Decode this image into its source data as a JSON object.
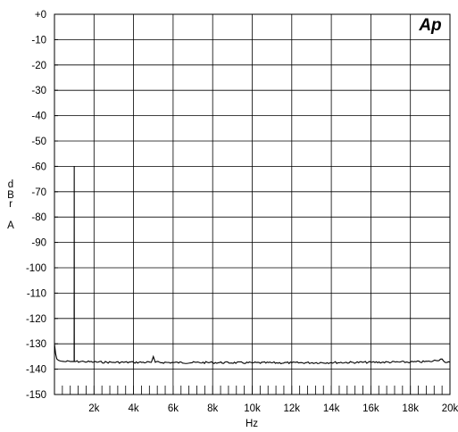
{
  "logo": {
    "text": "Ap"
  },
  "chart_data": {
    "type": "line",
    "title": "",
    "xlabel": "Hz",
    "ylabel_chars": [
      "d",
      "B",
      "r",
      "",
      "A"
    ],
    "xlim": [
      0,
      20000
    ],
    "ylim": [
      -150,
      0
    ],
    "grid": true,
    "x_ticks": [
      {
        "value": 2000,
        "label": "2k"
      },
      {
        "value": 4000,
        "label": "4k"
      },
      {
        "value": 6000,
        "label": "6k"
      },
      {
        "value": 8000,
        "label": "8k"
      },
      {
        "value": 10000,
        "label": "10k"
      },
      {
        "value": 12000,
        "label": "12k"
      },
      {
        "value": 14000,
        "label": "14k"
      },
      {
        "value": 16000,
        "label": "16k"
      },
      {
        "value": 18000,
        "label": "18k"
      },
      {
        "value": 20000,
        "label": "20k"
      }
    ],
    "y_ticks": [
      {
        "value": 0,
        "label": "+0"
      },
      {
        "value": -10,
        "label": "-10"
      },
      {
        "value": -20,
        "label": "-20"
      },
      {
        "value": -30,
        "label": "-30"
      },
      {
        "value": -40,
        "label": "-40"
      },
      {
        "value": -50,
        "label": "-50"
      },
      {
        "value": -60,
        "label": "-60"
      },
      {
        "value": -70,
        "label": "-70"
      },
      {
        "value": -80,
        "label": "-80"
      },
      {
        "value": -90,
        "label": "-90"
      },
      {
        "value": -100,
        "label": "-100"
      },
      {
        "value": -110,
        "label": "-110"
      },
      {
        "value": -120,
        "label": "-120"
      },
      {
        "value": -130,
        "label": "-130"
      },
      {
        "value": -140,
        "label": "-140"
      },
      {
        "value": -150,
        "label": "-150"
      }
    ],
    "series": [
      {
        "color": "#000000",
        "points": [
          [
            0,
            -130
          ],
          [
            60,
            -134
          ],
          [
            120,
            -136
          ],
          [
            200,
            -136.5
          ],
          [
            300,
            -136.8
          ],
          [
            500,
            -137
          ],
          [
            800,
            -137
          ],
          [
            995,
            -137
          ],
          [
            1000,
            -60
          ],
          [
            1005,
            -137
          ],
          [
            1500,
            -137
          ],
          [
            2000,
            -137.2
          ],
          [
            3000,
            -137.3
          ],
          [
            4000,
            -137.3
          ],
          [
            4900,
            -137.3
          ],
          [
            5000,
            -135
          ],
          [
            5100,
            -137.3
          ],
          [
            6000,
            -137.4
          ],
          [
            8000,
            -137.4
          ],
          [
            10000,
            -137.5
          ],
          [
            12000,
            -137.5
          ],
          [
            14000,
            -137.4
          ],
          [
            16000,
            -137.3
          ],
          [
            18000,
            -137.2
          ],
          [
            19000,
            -137.0
          ],
          [
            19600,
            -136.0
          ],
          [
            19700,
            -137.0
          ],
          [
            20000,
            -137.2
          ]
        ]
      }
    ]
  }
}
